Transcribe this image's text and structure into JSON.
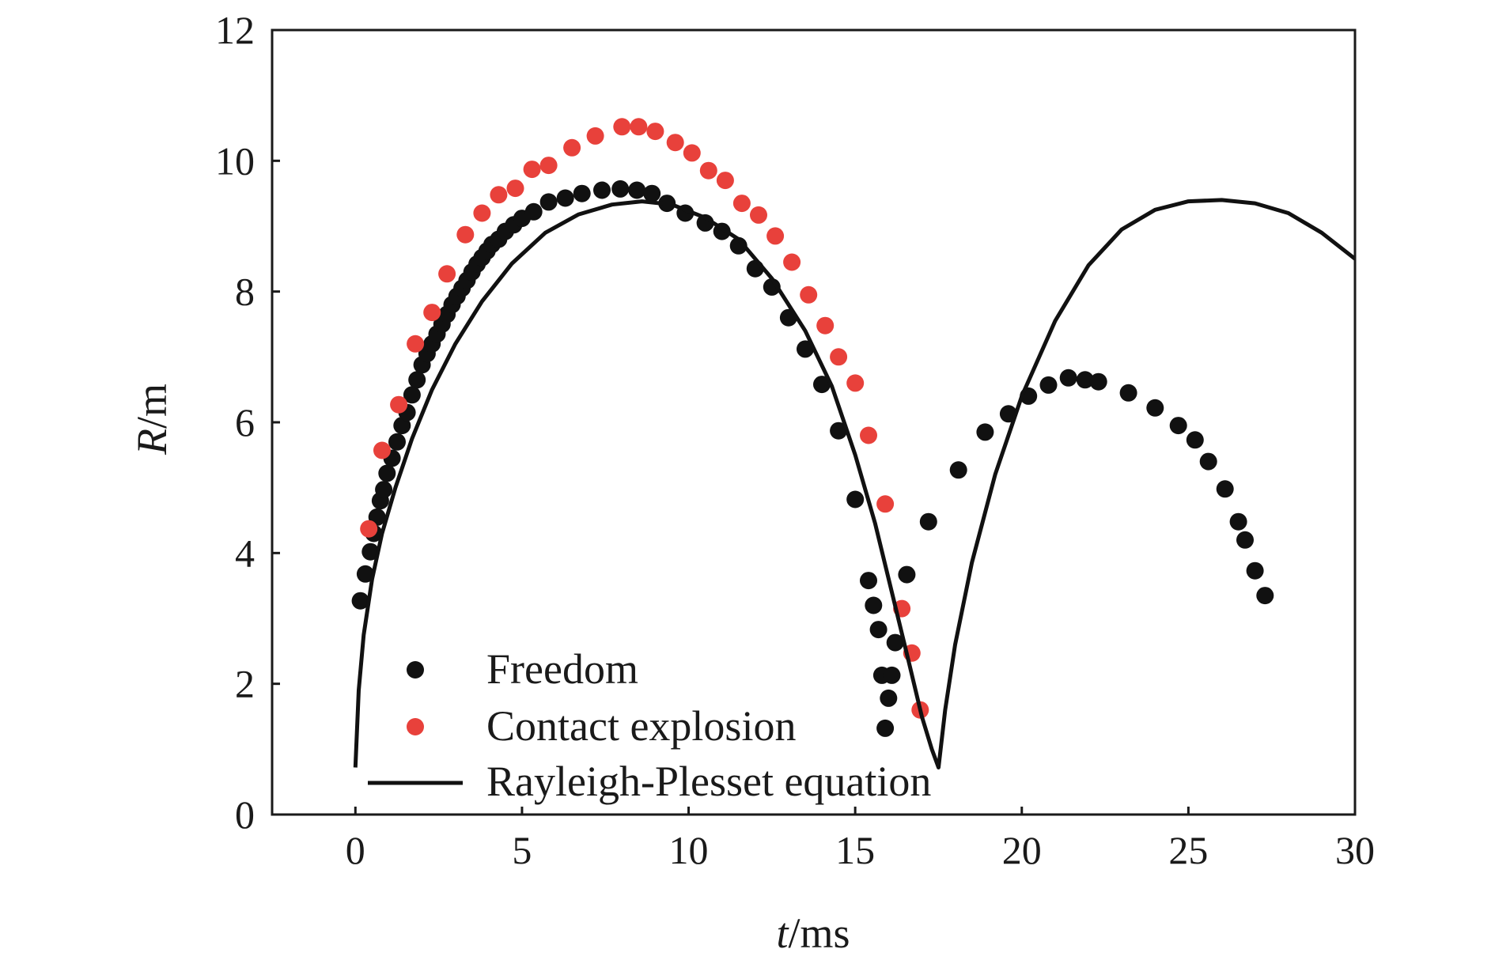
{
  "chart_data": {
    "type": "scatter",
    "title": "",
    "xlabel": {
      "var": "t",
      "unit": "/ms"
    },
    "ylabel": {
      "var": "R",
      "unit": "/m"
    },
    "xlim": [
      -2.5,
      30
    ],
    "ylim": [
      0,
      12
    ],
    "xticks": [
      0,
      5,
      10,
      15,
      20,
      25,
      30
    ],
    "yticks": [
      0,
      2,
      4,
      6,
      8,
      10,
      12
    ],
    "grid": false,
    "legend_position": "bottom-left",
    "series": [
      {
        "name": "Freedom",
        "kind": "scatter",
        "color": "#111111",
        "points": [
          [
            0.15,
            3.27
          ],
          [
            0.3,
            3.68
          ],
          [
            0.45,
            4.02
          ],
          [
            0.55,
            4.3
          ],
          [
            0.65,
            4.55
          ],
          [
            0.75,
            4.8
          ],
          [
            0.85,
            4.97
          ],
          [
            0.95,
            5.22
          ],
          [
            1.1,
            5.45
          ],
          [
            1.25,
            5.7
          ],
          [
            1.4,
            5.95
          ],
          [
            1.55,
            6.15
          ],
          [
            1.7,
            6.42
          ],
          [
            1.85,
            6.65
          ],
          [
            2.0,
            6.88
          ],
          [
            2.15,
            7.05
          ],
          [
            2.3,
            7.2
          ],
          [
            2.45,
            7.35
          ],
          [
            2.6,
            7.5
          ],
          [
            2.75,
            7.65
          ],
          [
            2.9,
            7.8
          ],
          [
            3.05,
            7.93
          ],
          [
            3.2,
            8.05
          ],
          [
            3.35,
            8.17
          ],
          [
            3.5,
            8.3
          ],
          [
            3.65,
            8.42
          ],
          [
            3.8,
            8.52
          ],
          [
            3.95,
            8.62
          ],
          [
            4.1,
            8.72
          ],
          [
            4.3,
            8.8
          ],
          [
            4.5,
            8.92
          ],
          [
            4.75,
            9.02
          ],
          [
            5.0,
            9.12
          ],
          [
            5.35,
            9.22
          ],
          [
            5.8,
            9.37
          ],
          [
            6.3,
            9.43
          ],
          [
            6.8,
            9.5
          ],
          [
            7.4,
            9.55
          ],
          [
            7.95,
            9.57
          ],
          [
            8.45,
            9.55
          ],
          [
            8.9,
            9.5
          ],
          [
            9.35,
            9.35
          ],
          [
            9.9,
            9.2
          ],
          [
            10.5,
            9.05
          ],
          [
            11.0,
            8.92
          ],
          [
            11.5,
            8.7
          ],
          [
            12.0,
            8.35
          ],
          [
            12.5,
            8.07
          ],
          [
            13.0,
            7.6
          ],
          [
            13.5,
            7.12
          ],
          [
            14.0,
            6.58
          ],
          [
            14.5,
            5.87
          ],
          [
            15.0,
            4.82
          ],
          [
            15.4,
            3.58
          ],
          [
            15.55,
            3.2
          ],
          [
            15.7,
            2.83
          ],
          [
            15.8,
            2.13
          ],
          [
            16.1,
            2.13
          ],
          [
            16.0,
            1.78
          ],
          [
            15.9,
            1.32
          ],
          [
            16.2,
            2.63
          ],
          [
            16.55,
            3.67
          ],
          [
            17.2,
            4.48
          ],
          [
            18.1,
            5.27
          ],
          [
            18.9,
            5.85
          ],
          [
            19.6,
            6.13
          ],
          [
            20.2,
            6.4
          ],
          [
            20.8,
            6.57
          ],
          [
            21.4,
            6.68
          ],
          [
            21.9,
            6.65
          ],
          [
            22.3,
            6.62
          ],
          [
            23.2,
            6.45
          ],
          [
            24.0,
            6.22
          ],
          [
            24.7,
            5.95
          ],
          [
            25.2,
            5.73
          ],
          [
            25.6,
            5.4
          ],
          [
            26.1,
            4.98
          ],
          [
            26.5,
            4.48
          ],
          [
            26.7,
            4.2
          ],
          [
            27.0,
            3.73
          ],
          [
            27.3,
            3.35
          ]
        ]
      },
      {
        "name": "Contact explosion",
        "kind": "scatter",
        "color": "#e8413b",
        "points": [
          [
            0.4,
            4.37
          ],
          [
            0.8,
            5.57
          ],
          [
            1.3,
            6.27
          ],
          [
            1.8,
            7.2
          ],
          [
            2.3,
            7.68
          ],
          [
            2.75,
            8.27
          ],
          [
            3.3,
            8.87
          ],
          [
            3.8,
            9.2
          ],
          [
            4.3,
            9.48
          ],
          [
            4.8,
            9.58
          ],
          [
            5.3,
            9.87
          ],
          [
            5.8,
            9.93
          ],
          [
            6.5,
            10.2
          ],
          [
            7.2,
            10.38
          ],
          [
            8.0,
            10.52
          ],
          [
            8.5,
            10.52
          ],
          [
            9.0,
            10.45
          ],
          [
            9.6,
            10.28
          ],
          [
            10.1,
            10.12
          ],
          [
            10.6,
            9.85
          ],
          [
            11.1,
            9.7
          ],
          [
            11.6,
            9.35
          ],
          [
            12.1,
            9.17
          ],
          [
            12.6,
            8.85
          ],
          [
            13.1,
            8.45
          ],
          [
            13.6,
            7.95
          ],
          [
            14.1,
            7.48
          ],
          [
            14.5,
            7.0
          ],
          [
            15.0,
            6.6
          ],
          [
            15.4,
            5.8
          ],
          [
            15.9,
            4.75
          ],
          [
            16.4,
            3.15
          ],
          [
            16.7,
            2.47
          ],
          [
            16.95,
            1.6
          ]
        ]
      },
      {
        "name": "Rayleigh-Plesset equation",
        "kind": "line",
        "color": "#111111",
        "points": [
          [
            0.0,
            0.72
          ],
          [
            0.1,
            1.9
          ],
          [
            0.25,
            2.75
          ],
          [
            0.5,
            3.6
          ],
          [
            0.8,
            4.3
          ],
          [
            1.2,
            5.0
          ],
          [
            1.7,
            5.75
          ],
          [
            2.3,
            6.5
          ],
          [
            3.0,
            7.2
          ],
          [
            3.8,
            7.85
          ],
          [
            4.7,
            8.43
          ],
          [
            5.7,
            8.9
          ],
          [
            6.7,
            9.18
          ],
          [
            7.7,
            9.33
          ],
          [
            8.6,
            9.38
          ],
          [
            9.5,
            9.33
          ],
          [
            10.5,
            9.13
          ],
          [
            11.5,
            8.8
          ],
          [
            12.5,
            8.2
          ],
          [
            13.5,
            7.4
          ],
          [
            14.3,
            6.55
          ],
          [
            15.0,
            5.5
          ],
          [
            15.6,
            4.45
          ],
          [
            16.1,
            3.4
          ],
          [
            16.6,
            2.35
          ],
          [
            17.0,
            1.5
          ],
          [
            17.3,
            1.0
          ],
          [
            17.5,
            0.72
          ],
          [
            17.7,
            1.6
          ],
          [
            18.0,
            2.6
          ],
          [
            18.5,
            3.85
          ],
          [
            19.2,
            5.2
          ],
          [
            20.0,
            6.4
          ],
          [
            21.0,
            7.55
          ],
          [
            22.0,
            8.4
          ],
          [
            23.0,
            8.95
          ],
          [
            24.0,
            9.25
          ],
          [
            25.0,
            9.38
          ],
          [
            26.0,
            9.4
          ],
          [
            27.0,
            9.35
          ],
          [
            28.0,
            9.2
          ],
          [
            29.0,
            8.9
          ],
          [
            30.0,
            8.5
          ]
        ]
      }
    ]
  }
}
